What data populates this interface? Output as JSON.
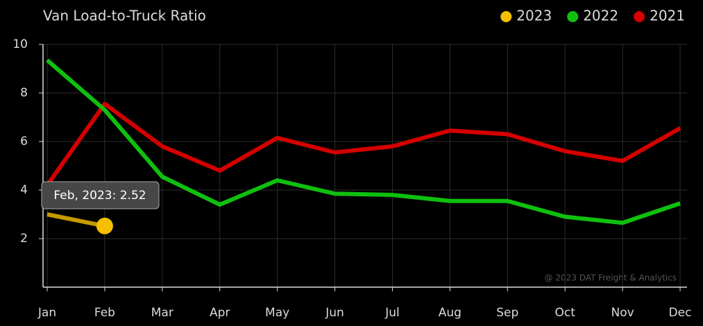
{
  "chart_data": {
    "type": "line",
    "title": "Van Load-to-Truck Ratio",
    "categories": [
      "Jan",
      "Feb",
      "Mar",
      "Apr",
      "May",
      "Jun",
      "Jul",
      "Aug",
      "Sep",
      "Oct",
      "Nov",
      "Dec"
    ],
    "series": [
      {
        "name": "2023",
        "color": "#f5c000",
        "values": [
          3.0,
          2.52,
          null,
          null,
          null,
          null,
          null,
          null,
          null,
          null,
          null,
          null
        ]
      },
      {
        "name": "2022",
        "color": "#0fc00f",
        "values": [
          9.35,
          7.3,
          4.55,
          3.4,
          4.4,
          3.85,
          3.8,
          3.55,
          3.55,
          2.9,
          2.65,
          3.45
        ]
      },
      {
        "name": "2021",
        "color": "#d40000",
        "values": [
          4.2,
          7.55,
          5.8,
          4.8,
          6.15,
          5.55,
          5.8,
          6.45,
          6.3,
          5.6,
          5.2,
          6.55
        ]
      }
    ],
    "ylim": [
      0,
      10
    ],
    "yticks": [
      2,
      4,
      6,
      8,
      10
    ],
    "grid": true,
    "legend": "top-right",
    "tooltip": "Feb, 2023: 2.52",
    "annotation": "@ 2023 DAT Freight & Analytics"
  }
}
